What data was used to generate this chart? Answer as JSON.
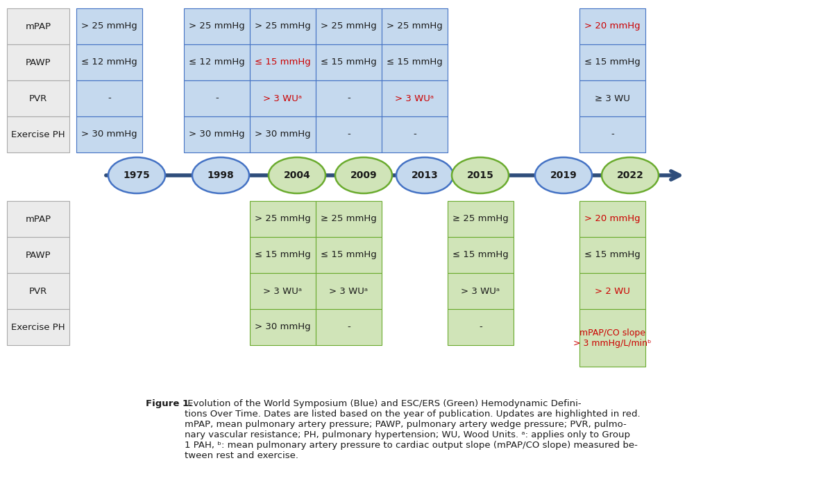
{
  "timeline_years": [
    "1975",
    "1998",
    "2004",
    "2009",
    "2013",
    "2015",
    "2019",
    "2022"
  ],
  "year_colors": {
    "1975": "blue",
    "1998": "blue",
    "2004": "green",
    "2009": "green",
    "2013": "blue",
    "2015": "green",
    "2019": "blue",
    "2022": "green"
  },
  "blue_fill": "#c5d9ee",
  "blue_border": "#4472c4",
  "green_fill": "#d0e4b8",
  "green_border": "#6aab2e",
  "label_fill": "#ebebeb",
  "label_border": "#aaaaaa",
  "red": "#cc0000",
  "black": "#1a1a1a",
  "timeline_color": "#2e4d7b",
  "white": "#ffffff",
  "caption_bold": "Figure 1.",
  "caption_rest": " Evolution of the World Symposium (Blue) and ESC/ERS (Green) Hemodynamic Defini-\ntions Over Time. Dates are listed based on the year of publication. Updates are highlighted in red.\nmPAP, mean pulmonary artery pressure; PAWP, pulmonary artery wedge pressure; PVR, pulmo-\nnary vascular resistance; PH, pulmonary hypertension; WU, Wood Units. ᵃ: applies only to Group\n1 PAH, ᵇ: mean pulmonary artery pressure to cardiac output slope (mPAP/CO slope) measured be-\ntween rest and exercise."
}
